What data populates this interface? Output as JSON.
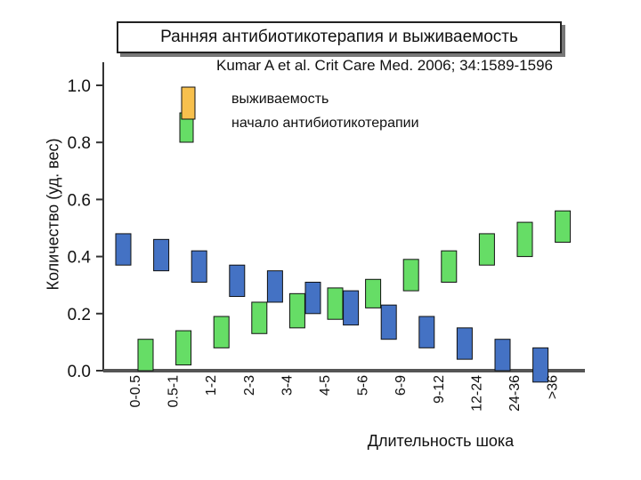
{
  "title": "Ранняя антибиотикотерапия и выживаемость",
  "citation": "Kumar A et al. Crit Care Med. 2006; 34:1589-1596",
  "chart_data": {
    "type": "bar",
    "xlabel": "Длительность шока",
    "ylabel": "Количество (уд. вес)",
    "ylim": [
      0.0,
      1.0
    ],
    "yticks": [
      "0.0",
      "0.2",
      "0.4",
      "0.6",
      "0.8",
      "1.0"
    ],
    "grid": false,
    "legend_placement": "top-center",
    "categories": [
      "0-0.5",
      "0.5-1",
      "1-2",
      "2-3",
      "3-4",
      "4-5",
      "5-6",
      "6-9",
      "9-12",
      "12-24",
      "24-36",
      ">36"
    ],
    "series": [
      {
        "name": "выживаемость",
        "color": "#4472c4",
        "ranges": [
          [
            0.37,
            0.48
          ],
          [
            0.35,
            0.46
          ],
          [
            0.31,
            0.42
          ],
          [
            0.26,
            0.37
          ],
          [
            0.24,
            0.35
          ],
          [
            0.2,
            0.31
          ],
          [
            0.16,
            0.28
          ],
          [
            0.11,
            0.23
          ],
          [
            0.08,
            0.19
          ],
          [
            0.04,
            0.15
          ],
          [
            0.0,
            0.11
          ],
          [
            -0.04,
            0.08
          ]
        ]
      },
      {
        "name": "начало антибиотикотерапии",
        "color": "#66dd66",
        "ranges": [
          [
            0.0,
            0.11
          ],
          [
            0.02,
            0.14
          ],
          [
            0.08,
            0.19
          ],
          [
            0.13,
            0.24
          ],
          [
            0.15,
            0.27
          ],
          [
            0.18,
            0.29
          ],
          [
            0.22,
            0.32
          ],
          [
            0.28,
            0.39
          ],
          [
            0.31,
            0.42
          ],
          [
            0.37,
            0.48
          ],
          [
            0.4,
            0.52
          ],
          [
            0.45,
            0.56
          ]
        ]
      }
    ],
    "legend_swatch_colors": [
      "#f7c04d",
      "#66dd66"
    ]
  }
}
